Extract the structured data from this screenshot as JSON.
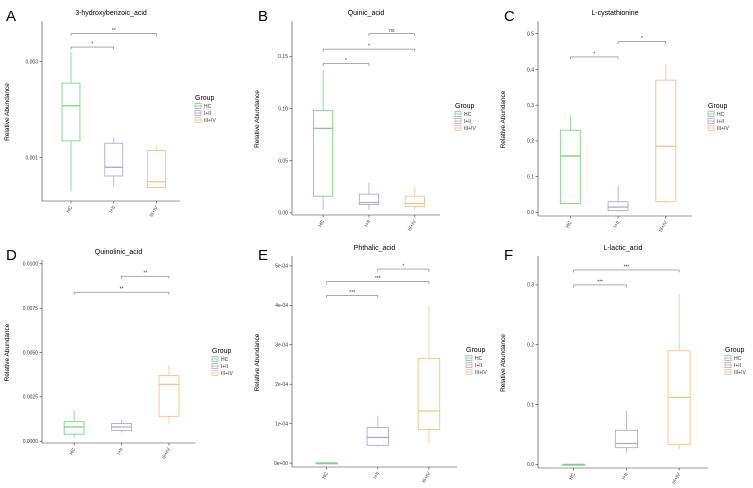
{
  "figure": {
    "group_legend_title": "Group",
    "ylabel": "Relative Abundance",
    "group_colors": {
      "HC": "#7fd07f",
      "I+II": "#b3a7d9",
      "III+IV": "#f6c28c"
    }
  },
  "chart_data": [
    {
      "panel": "A",
      "type": "boxplot",
      "title": "3-hydroxybenzoic_acid",
      "ylabel": "Relative Abundance",
      "ylim": [
        0.0001,
        0.0038
      ],
      "y_ticks": [
        0.001,
        0.003
      ],
      "y_tick_labels": [
        "0.001",
        "0.003"
      ],
      "categories": [
        "HC",
        "I+II",
        "III+IV"
      ],
      "x_tick_labels": [
        "HC",
        "I+II",
        "III+IV"
      ],
      "boxes": [
        {
          "group": "HC",
          "whisker_low": 0.0003,
          "q1": 0.00135,
          "median": 0.00208,
          "q3": 0.00255,
          "whisker_high": 0.0032
        },
        {
          "group": "I+II",
          "whisker_low": 0.0004,
          "q1": 0.00062,
          "median": 0.0008,
          "q3": 0.0013,
          "whisker_high": 0.00142
        },
        {
          "group": "III+IV",
          "whisker_low": 0.00038,
          "q1": 0.00038,
          "median": 0.0005,
          "q3": 0.00115,
          "whisker_high": 0.00122
        }
      ],
      "comparisons": [
        {
          "groups": [
            "HC",
            "I+II"
          ],
          "label": "*",
          "y": 0.0033
        },
        {
          "groups": [
            "HC",
            "III+IV"
          ],
          "label": "**",
          "y": 0.00358
        }
      ],
      "legend": {
        "title": "Group",
        "entries": [
          "HC",
          "I+II",
          "III+IV"
        ]
      }
    },
    {
      "panel": "B",
      "type": "boxplot",
      "title": "Quinic_acid",
      "ylabel": "Relative Abundance",
      "ylim": [
        -0.002,
        0.182
      ],
      "y_ticks": [
        0.0,
        0.05,
        0.1,
        0.15
      ],
      "y_tick_labels": [
        "0.00",
        "0.05",
        "0.10",
        "0.15"
      ],
      "categories": [
        "HC",
        "I+II",
        "III+IV"
      ],
      "x_tick_labels": [
        "HC",
        "I+II",
        "III+IV"
      ],
      "boxes": [
        {
          "group": "HC",
          "whisker_low": 0.003,
          "q1": 0.016,
          "median": 0.081,
          "q3": 0.098,
          "whisker_high": 0.137
        },
        {
          "group": "I+II",
          "whisker_low": 0.003,
          "q1": 0.008,
          "median": 0.01,
          "q3": 0.018,
          "whisker_high": 0.029
        },
        {
          "group": "III+IV",
          "whisker_low": 0.003,
          "q1": 0.006,
          "median": 0.009,
          "q3": 0.016,
          "whisker_high": 0.025
        }
      ],
      "comparisons": [
        {
          "groups": [
            "HC",
            "I+II"
          ],
          "label": "*",
          "y": 0.143
        },
        {
          "groups": [
            "HC",
            "III+IV"
          ],
          "label": "*",
          "y": 0.157
        },
        {
          "groups": [
            "I+II",
            "III+IV"
          ],
          "label": "ns",
          "y": 0.172
        }
      ],
      "legend": {
        "title": "Group",
        "entries": [
          "HC",
          "I+II",
          "III+IV"
        ]
      }
    },
    {
      "panel": "C",
      "type": "boxplot",
      "title": "L-cystathionine",
      "ylabel": "Relative Abundance",
      "ylim": [
        -0.01,
        0.53
      ],
      "y_ticks": [
        0.0,
        0.1,
        0.2,
        0.3,
        0.4,
        0.5
      ],
      "y_tick_labels": [
        "0.0",
        "0.1",
        "0.2",
        "0.3",
        "0.4",
        "0.5"
      ],
      "categories": [
        "HC",
        "I+II",
        "III+IV"
      ],
      "x_tick_labels": [
        "HC",
        "I+II",
        "III+IV"
      ],
      "boxes": [
        {
          "group": "HC",
          "whisker_low": 0.025,
          "q1": 0.025,
          "median": 0.158,
          "q3": 0.23,
          "whisker_high": 0.272
        },
        {
          "group": "I+II",
          "whisker_low": 0.002,
          "q1": 0.005,
          "median": 0.015,
          "q3": 0.03,
          "whisker_high": 0.075
        },
        {
          "group": "III+IV",
          "whisker_low": 0.025,
          "q1": 0.03,
          "median": 0.185,
          "q3": 0.37,
          "whisker_high": 0.415
        }
      ],
      "comparisons": [
        {
          "groups": [
            "HC",
            "I+II"
          ],
          "label": "*",
          "y": 0.435
        },
        {
          "groups": [
            "I+II",
            "III+IV"
          ],
          "label": "*",
          "y": 0.478
        }
      ],
      "legend": {
        "title": "Group",
        "entries": [
          "HC",
          "I+II",
          "III+IV"
        ]
      }
    },
    {
      "panel": "D",
      "type": "boxplot",
      "title": "Quinolinic_acid",
      "ylabel": "Relative Abundance",
      "ylim": [
        -0.0001,
        0.0101
      ],
      "y_ticks": [
        0.0,
        0.0025,
        0.005,
        0.0075,
        0.01
      ],
      "y_tick_labels": [
        "0.0000",
        "0.0025",
        "0.0050",
        "0.0075",
        "0.0100"
      ],
      "categories": [
        "HC",
        "I+II",
        "III+IV"
      ],
      "x_tick_labels": [
        "HC",
        "I+II",
        "III+IV"
      ],
      "boxes": [
        {
          "group": "HC",
          "whisker_low": 0.0002,
          "q1": 0.0004,
          "median": 0.0008,
          "q3": 0.0011,
          "whisker_high": 0.0017
        },
        {
          "group": "I+II",
          "whisker_low": 0.0005,
          "q1": 0.0006,
          "median": 0.0008,
          "q3": 0.001,
          "whisker_high": 0.0012
        },
        {
          "group": "III+IV",
          "whisker_low": 0.001,
          "q1": 0.0014,
          "median": 0.0032,
          "q3": 0.0037,
          "whisker_high": 0.0043
        }
      ],
      "comparisons": [
        {
          "groups": [
            "HC",
            "III+IV"
          ],
          "label": "**",
          "y": 0.0084
        },
        {
          "groups": [
            "I+II",
            "III+IV"
          ],
          "label": "**",
          "y": 0.0093
        }
      ],
      "legend": {
        "title": "Group",
        "entries": [
          "HC",
          "I+II",
          "III+IV"
        ]
      }
    },
    {
      "panel": "E",
      "type": "boxplot",
      "title": "Phthalic_acid",
      "ylabel": "Relative Abundance",
      "ylim": [
        -1e-05,
        0.00052
      ],
      "y_ticks": [
        0,
        0.0001,
        0.0002,
        0.0003,
        0.0004,
        0.0005
      ],
      "y_tick_labels": [
        "0e+00",
        "1e-04",
        "2e-04",
        "3e-04",
        "4e-04",
        "5e-04"
      ],
      "categories": [
        "HC",
        "I+II",
        "III+IV"
      ],
      "x_tick_labels": [
        "HC",
        "I+II",
        "III+IV"
      ],
      "boxes": [
        {
          "group": "HC",
          "whisker_low": 0.0,
          "q1": 0.0,
          "median": 0.0,
          "q3": 0.0,
          "whisker_high": 0.0
        },
        {
          "group": "I+II",
          "whisker_low": 4e-05,
          "q1": 4.5e-05,
          "median": 6.5e-05,
          "q3": 9e-05,
          "whisker_high": 0.00012
        },
        {
          "group": "III+IV",
          "whisker_low": 5e-05,
          "q1": 8.5e-05,
          "median": 0.000132,
          "q3": 0.000265,
          "whisker_high": 0.0004
        }
      ],
      "comparisons": [
        {
          "groups": [
            "HC",
            "I+II"
          ],
          "label": "***",
          "y": 0.000425
        },
        {
          "groups": [
            "HC",
            "III+IV"
          ],
          "label": "***",
          "y": 0.00046
        },
        {
          "groups": [
            "I+II",
            "III+IV"
          ],
          "label": "*",
          "y": 0.000492
        }
      ],
      "legend": {
        "title": "Group",
        "entries": [
          "HC",
          "I+II",
          "III+IV"
        ]
      }
    },
    {
      "panel": "F",
      "type": "boxplot",
      "title": "L-lactic_acid",
      "ylabel": "Relative Abundance",
      "ylim": [
        -0.006,
        0.345
      ],
      "y_ticks": [
        0.0,
        0.1,
        0.2,
        0.3
      ],
      "y_tick_labels": [
        "0.0",
        "0.1",
        "0.2",
        "0.3"
      ],
      "categories": [
        "HC",
        "I+II",
        "III+IV"
      ],
      "x_tick_labels": [
        "HC",
        "I+II",
        "III+IV"
      ],
      "boxes": [
        {
          "group": "HC",
          "whisker_low": 0.0,
          "q1": 0.0,
          "median": 0.0,
          "q3": 0.0,
          "whisker_high": 0.0
        },
        {
          "group": "I+II",
          "whisker_low": 0.02,
          "q1": 0.028,
          "median": 0.035,
          "q3": 0.057,
          "whisker_high": 0.09
        },
        {
          "group": "III+IV",
          "whisker_low": 0.025,
          "q1": 0.033,
          "median": 0.112,
          "q3": 0.19,
          "whisker_high": 0.285
        }
      ],
      "comparisons": [
        {
          "groups": [
            "HC",
            "I+II"
          ],
          "label": "***",
          "y": 0.3
        },
        {
          "groups": [
            "HC",
            "III+IV"
          ],
          "label": "***",
          "y": 0.325
        }
      ],
      "legend": {
        "title": "Group",
        "entries": [
          "HC",
          "I+II",
          "III+IV"
        ]
      }
    }
  ]
}
